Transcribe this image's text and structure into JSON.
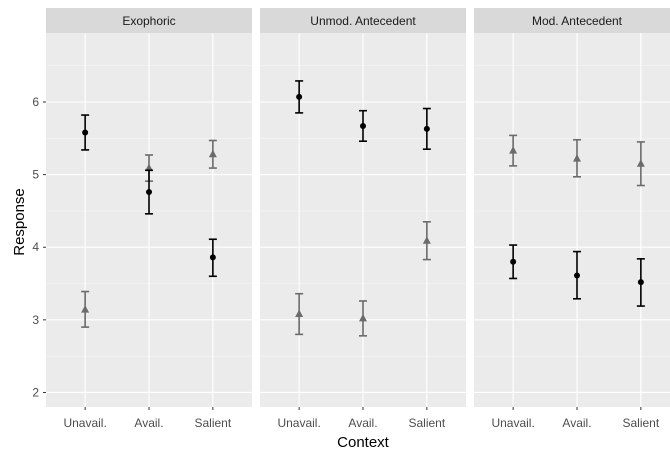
{
  "chart_data": {
    "type": "scatter",
    "xlabel": "Context",
    "ylabel": "Response",
    "ylim": [
      1.8,
      6.95
    ],
    "y_ticks": [
      2,
      3,
      4,
      5,
      6
    ],
    "categories": [
      "Unavail.",
      "Avail.",
      "Salient"
    ],
    "grid": true,
    "legend": "none",
    "series_styles": [
      {
        "marker": "circle",
        "color": "#000000"
      },
      {
        "marker": "triangle",
        "color": "#6b6b6b"
      }
    ],
    "panels": [
      {
        "title": "Exophoric",
        "series": [
          {
            "marker": "circle",
            "values": [
              5.58,
              4.76,
              3.86
            ],
            "lower": [
              5.34,
              4.46,
              3.6
            ],
            "upper": [
              5.82,
              5.06,
              4.11
            ]
          },
          {
            "marker": "triangle",
            "values": [
              3.14,
              5.09,
              5.28
            ],
            "lower": [
              2.9,
              4.91,
              5.09
            ],
            "upper": [
              3.39,
              5.27,
              5.47
            ]
          }
        ]
      },
      {
        "title": "Unmod. Antecedent",
        "series": [
          {
            "marker": "circle",
            "values": [
              6.07,
              5.67,
              5.63
            ],
            "lower": [
              5.85,
              5.46,
              5.35
            ],
            "upper": [
              6.29,
              5.88,
              5.91
            ]
          },
          {
            "marker": "triangle",
            "values": [
              3.08,
              3.02,
              4.09
            ],
            "lower": [
              2.8,
              2.78,
              3.83
            ],
            "upper": [
              3.36,
              3.26,
              4.35
            ]
          }
        ]
      },
      {
        "title": "Mod. Antecedent",
        "series": [
          {
            "marker": "circle",
            "values": [
              3.8,
              3.61,
              3.52
            ],
            "lower": [
              3.57,
              3.29,
              3.19
            ],
            "upper": [
              4.03,
              3.94,
              3.84
            ]
          },
          {
            "marker": "triangle",
            "values": [
              5.33,
              5.22,
              5.15
            ],
            "lower": [
              5.12,
              4.97,
              4.85
            ],
            "upper": [
              5.54,
              5.48,
              5.45
            ]
          }
        ]
      }
    ]
  },
  "colors": {
    "panel_background": "#ebebeb",
    "strip_background": "#d9d9d9",
    "grid_major": "#ffffff",
    "grid_minor": "#f5f5f5"
  }
}
